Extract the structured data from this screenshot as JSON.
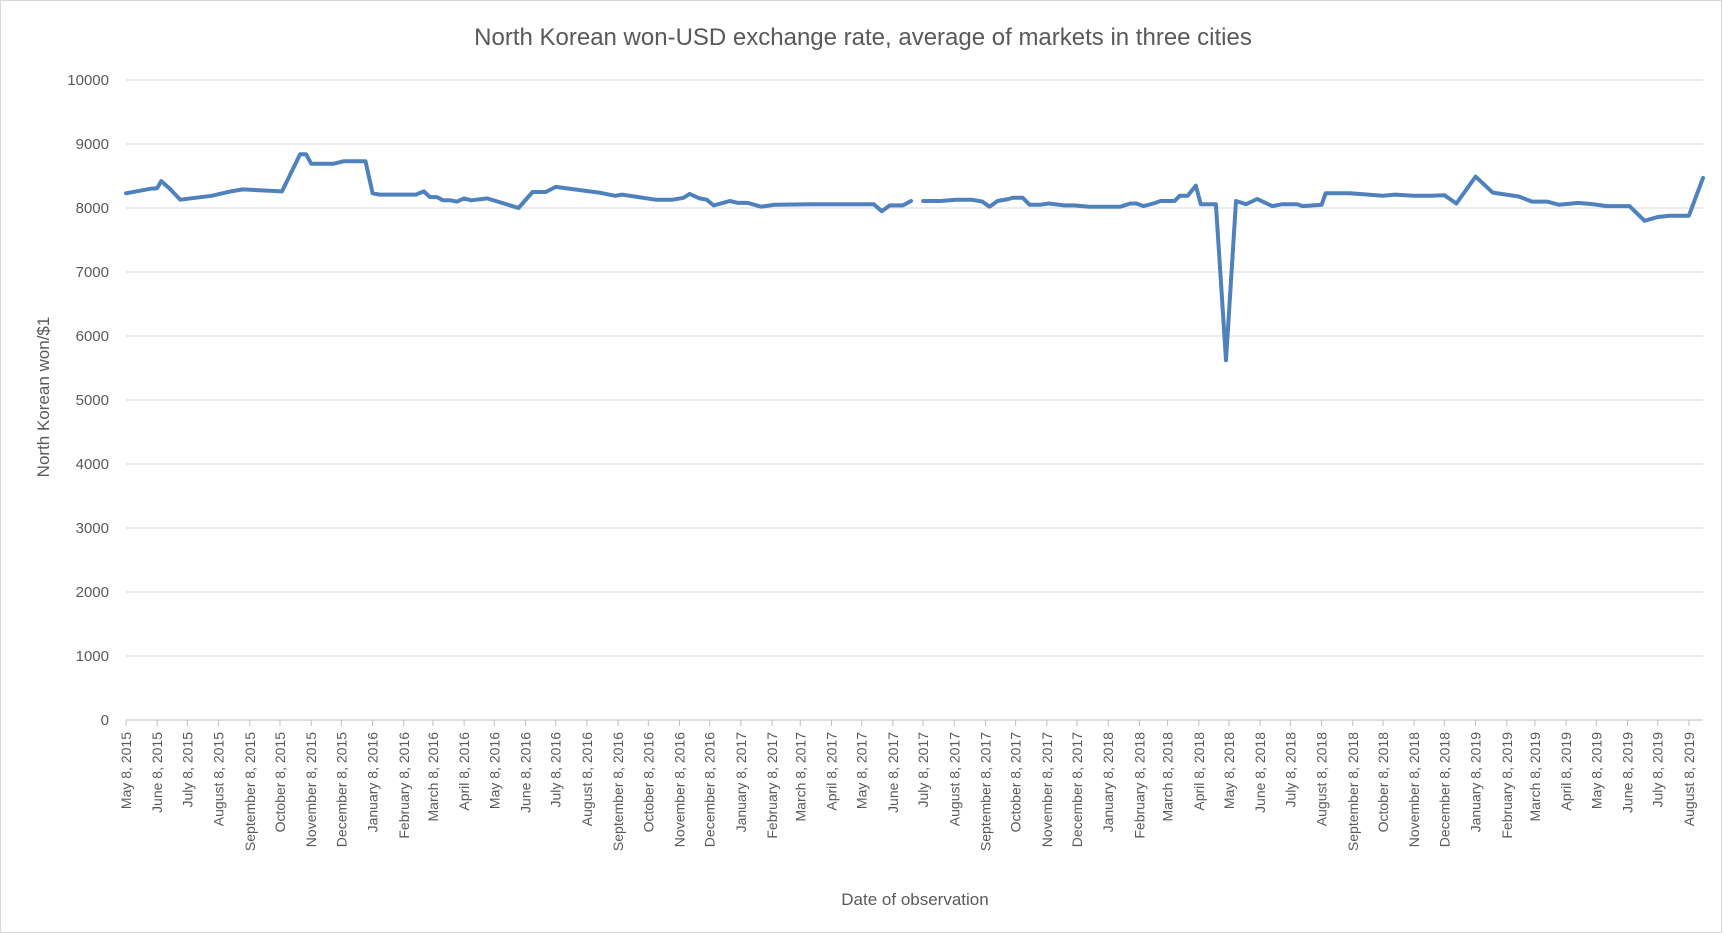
{
  "chart_data": {
    "type": "line",
    "title": "North Korean won-USD exchange rate, average of markets in three cities",
    "xlabel": "Date of observation",
    "ylabel": "North Korean won/$1",
    "ylim": [
      0,
      10000
    ],
    "yticks": [
      0,
      1000,
      2000,
      3000,
      4000,
      5000,
      6000,
      7000,
      8000,
      9000,
      10000
    ],
    "xlim": [
      "2015-05-08",
      "2019-08-22"
    ],
    "grid": true,
    "legend": "none",
    "line_color": "#4f81bd",
    "xtick_labels": [
      {
        "date": "2015-05-08",
        "label": "May 8, 2015"
      },
      {
        "date": "2015-06-08",
        "label": "June 8, 2015"
      },
      {
        "date": "2015-07-08",
        "label": "July 8, 2015"
      },
      {
        "date": "2015-08-08",
        "label": "August 8, 2015"
      },
      {
        "date": "2015-09-08",
        "label": "September 8, 2015"
      },
      {
        "date": "2015-10-08",
        "label": "October 8, 2015"
      },
      {
        "date": "2015-11-08",
        "label": "November 8, 2015"
      },
      {
        "date": "2015-12-08",
        "label": "December 8, 2015"
      },
      {
        "date": "2016-01-08",
        "label": "January 8, 2016"
      },
      {
        "date": "2016-02-08",
        "label": "February 8, 2016"
      },
      {
        "date": "2016-03-08",
        "label": "March 8, 2016"
      },
      {
        "date": "2016-04-08",
        "label": "April 8, 2016"
      },
      {
        "date": "2016-05-08",
        "label": "May 8, 2016"
      },
      {
        "date": "2016-06-08",
        "label": "June 8, 2016"
      },
      {
        "date": "2016-07-08",
        "label": "July 8, 2016"
      },
      {
        "date": "2016-08-08",
        "label": "August 8, 2016"
      },
      {
        "date": "2016-09-08",
        "label": "September 8, 2016"
      },
      {
        "date": "2016-10-08",
        "label": "October 8, 2016"
      },
      {
        "date": "2016-11-08",
        "label": "November 8, 2016"
      },
      {
        "date": "2016-12-08",
        "label": "December 8, 2016"
      },
      {
        "date": "2017-01-08",
        "label": "January 8, 2017"
      },
      {
        "date": "2017-02-08",
        "label": "February 8, 2017"
      },
      {
        "date": "2017-03-08",
        "label": "March 8, 2017"
      },
      {
        "date": "2017-04-08",
        "label": "April 8, 2017"
      },
      {
        "date": "2017-05-08",
        "label": "May 8, 2017"
      },
      {
        "date": "2017-06-08",
        "label": "June 8, 2017"
      },
      {
        "date": "2017-07-08",
        "label": "July 8, 2017"
      },
      {
        "date": "2017-08-08",
        "label": "August 8, 2017"
      },
      {
        "date": "2017-09-08",
        "label": "September 8, 2017"
      },
      {
        "date": "2017-10-08",
        "label": "October 8, 2017"
      },
      {
        "date": "2017-11-08",
        "label": "November 8, 2017"
      },
      {
        "date": "2017-12-08",
        "label": "December 8, 2017"
      },
      {
        "date": "2018-01-08",
        "label": "January 8, 2018"
      },
      {
        "date": "2018-02-08",
        "label": "February 8, 2018"
      },
      {
        "date": "2018-03-08",
        "label": "March 8, 2018"
      },
      {
        "date": "2018-04-08",
        "label": "April 8, 2018"
      },
      {
        "date": "2018-05-08",
        "label": "May 8, 2018"
      },
      {
        "date": "2018-06-08",
        "label": "June 8, 2018"
      },
      {
        "date": "2018-07-08",
        "label": "July 8, 2018"
      },
      {
        "date": "2018-08-08",
        "label": "August 8, 2018"
      },
      {
        "date": "2018-09-08",
        "label": "September 8, 2018"
      },
      {
        "date": "2018-10-08",
        "label": "October 8, 2018"
      },
      {
        "date": "2018-11-08",
        "label": "November 8, 2018"
      },
      {
        "date": "2018-12-08",
        "label": "December 8, 2018"
      },
      {
        "date": "2019-01-08",
        "label": "January 8, 2019"
      },
      {
        "date": "2019-02-08",
        "label": "February 8, 2019"
      },
      {
        "date": "2019-03-08",
        "label": "March 8, 2019"
      },
      {
        "date": "2019-04-08",
        "label": "April 8, 2019"
      },
      {
        "date": "2019-05-08",
        "label": "May 8, 2019"
      },
      {
        "date": "2019-06-08",
        "label": "June 8, 2019"
      },
      {
        "date": "2019-07-08",
        "label": "July 8, 2019"
      },
      {
        "date": "2019-08-08",
        "label": "August 8, 2019"
      }
    ],
    "series": [
      {
        "segments": [
          [
            {
              "x": "2015-05-08",
              "y": 8230
            },
            {
              "x": "2015-06-01",
              "y": 8300
            },
            {
              "x": "2015-06-08",
              "y": 8310
            },
            {
              "x": "2015-06-12",
              "y": 8420
            },
            {
              "x": "2015-06-20",
              "y": 8310
            },
            {
              "x": "2015-07-01",
              "y": 8130
            },
            {
              "x": "2015-08-01",
              "y": 8190
            },
            {
              "x": "2015-08-20",
              "y": 8260
            },
            {
              "x": "2015-09-01",
              "y": 8290
            },
            {
              "x": "2015-10-10",
              "y": 8260
            },
            {
              "x": "2015-10-28",
              "y": 8840
            },
            {
              "x": "2015-11-03",
              "y": 8840
            },
            {
              "x": "2015-11-08",
              "y": 8690
            },
            {
              "x": "2015-11-30",
              "y": 8690
            },
            {
              "x": "2015-12-10",
              "y": 8730
            },
            {
              "x": "2016-01-01",
              "y": 8730
            },
            {
              "x": "2016-01-08",
              "y": 8230
            },
            {
              "x": "2016-01-15",
              "y": 8210
            },
            {
              "x": "2016-02-20",
              "y": 8210
            },
            {
              "x": "2016-02-28",
              "y": 8260
            },
            {
              "x": "2016-03-05",
              "y": 8170
            },
            {
              "x": "2016-03-12",
              "y": 8170
            },
            {
              "x": "2016-03-18",
              "y": 8120
            },
            {
              "x": "2016-03-25",
              "y": 8120
            },
            {
              "x": "2016-04-01",
              "y": 8100
            },
            {
              "x": "2016-04-08",
              "y": 8150
            },
            {
              "x": "2016-04-15",
              "y": 8120
            },
            {
              "x": "2016-05-01",
              "y": 8150
            },
            {
              "x": "2016-06-01",
              "y": 8000
            },
            {
              "x": "2016-06-15",
              "y": 8250
            },
            {
              "x": "2016-06-28",
              "y": 8250
            },
            {
              "x": "2016-07-08",
              "y": 8330
            },
            {
              "x": "2016-08-20",
              "y": 8240
            },
            {
              "x": "2016-09-05",
              "y": 8190
            },
            {
              "x": "2016-09-12",
              "y": 8210
            },
            {
              "x": "2016-10-15",
              "y": 8130
            },
            {
              "x": "2016-11-01",
              "y": 8130
            },
            {
              "x": "2016-11-12",
              "y": 8160
            },
            {
              "x": "2016-11-18",
              "y": 8220
            },
            {
              "x": "2016-11-28",
              "y": 8150
            },
            {
              "x": "2016-12-05",
              "y": 8130
            },
            {
              "x": "2016-12-12",
              "y": 8040
            },
            {
              "x": "2016-12-28",
              "y": 8110
            },
            {
              "x": "2017-01-05",
              "y": 8080
            },
            {
              "x": "2017-01-15",
              "y": 8080
            },
            {
              "x": "2017-01-28",
              "y": 8020
            },
            {
              "x": "2017-02-10",
              "y": 8050
            },
            {
              "x": "2017-03-20",
              "y": 8060
            },
            {
              "x": "2017-05-20",
              "y": 8060
            },
            {
              "x": "2017-05-28",
              "y": 7950
            },
            {
              "x": "2017-06-05",
              "y": 8040
            },
            {
              "x": "2017-06-18",
              "y": 8040
            },
            {
              "x": "2017-06-26",
              "y": 8110
            }
          ],
          [
            {
              "x": "2017-07-08",
              "y": 8110
            },
            {
              "x": "2017-07-25",
              "y": 8110
            },
            {
              "x": "2017-08-10",
              "y": 8130
            },
            {
              "x": "2017-08-25",
              "y": 8130
            },
            {
              "x": "2017-09-05",
              "y": 8100
            },
            {
              "x": "2017-09-12",
              "y": 8020
            },
            {
              "x": "2017-09-20",
              "y": 8110
            },
            {
              "x": "2017-10-01",
              "y": 8140
            },
            {
              "x": "2017-10-05",
              "y": 8160
            },
            {
              "x": "2017-10-15",
              "y": 8160
            },
            {
              "x": "2017-10-22",
              "y": 8050
            },
            {
              "x": "2017-11-01",
              "y": 8050
            },
            {
              "x": "2017-11-10",
              "y": 8070
            },
            {
              "x": "2017-11-25",
              "y": 8040
            },
            {
              "x": "2017-12-05",
              "y": 8040
            },
            {
              "x": "2017-12-20",
              "y": 8020
            },
            {
              "x": "2018-01-20",
              "y": 8020
            },
            {
              "x": "2018-01-30",
              "y": 8070
            },
            {
              "x": "2018-02-05",
              "y": 8070
            },
            {
              "x": "2018-02-12",
              "y": 8030
            },
            {
              "x": "2018-02-22",
              "y": 8070
            },
            {
              "x": "2018-03-01",
              "y": 8110
            },
            {
              "x": "2018-03-15",
              "y": 8110
            },
            {
              "x": "2018-03-20",
              "y": 8190
            },
            {
              "x": "2018-03-28",
              "y": 8190
            },
            {
              "x": "2018-04-05",
              "y": 8350
            },
            {
              "x": "2018-04-10",
              "y": 8060
            },
            {
              "x": "2018-04-25",
              "y": 8060
            },
            {
              "x": "2018-05-05",
              "y": 5620
            },
            {
              "x": "2018-05-15",
              "y": 8110
            },
            {
              "x": "2018-05-25",
              "y": 8060
            },
            {
              "x": "2018-06-05",
              "y": 8140
            },
            {
              "x": "2018-06-20",
              "y": 8030
            },
            {
              "x": "2018-06-30",
              "y": 8060
            },
            {
              "x": "2018-07-15",
              "y": 8060
            },
            {
              "x": "2018-07-20",
              "y": 8030
            },
            {
              "x": "2018-08-08",
              "y": 8050
            },
            {
              "x": "2018-08-12",
              "y": 8230
            },
            {
              "x": "2018-09-05",
              "y": 8230
            },
            {
              "x": "2018-10-08",
              "y": 8190
            },
            {
              "x": "2018-10-20",
              "y": 8210
            },
            {
              "x": "2018-11-08",
              "y": 8190
            },
            {
              "x": "2018-11-25",
              "y": 8190
            },
            {
              "x": "2018-12-08",
              "y": 8200
            },
            {
              "x": "2018-12-20",
              "y": 8070
            },
            {
              "x": "2019-01-08",
              "y": 8490
            },
            {
              "x": "2019-01-25",
              "y": 8240
            },
            {
              "x": "2019-02-20",
              "y": 8180
            },
            {
              "x": "2019-03-05",
              "y": 8100
            },
            {
              "x": "2019-03-20",
              "y": 8100
            },
            {
              "x": "2019-04-01",
              "y": 8050
            },
            {
              "x": "2019-04-20",
              "y": 8080
            },
            {
              "x": "2019-05-05",
              "y": 8060
            },
            {
              "x": "2019-05-18",
              "y": 8030
            },
            {
              "x": "2019-06-10",
              "y": 8030
            },
            {
              "x": "2019-06-25",
              "y": 7800
            },
            {
              "x": "2019-07-08",
              "y": 7860
            },
            {
              "x": "2019-07-20",
              "y": 7880
            },
            {
              "x": "2019-08-08",
              "y": 7880
            },
            {
              "x": "2019-08-22",
              "y": 8470
            }
          ]
        ]
      }
    ]
  }
}
